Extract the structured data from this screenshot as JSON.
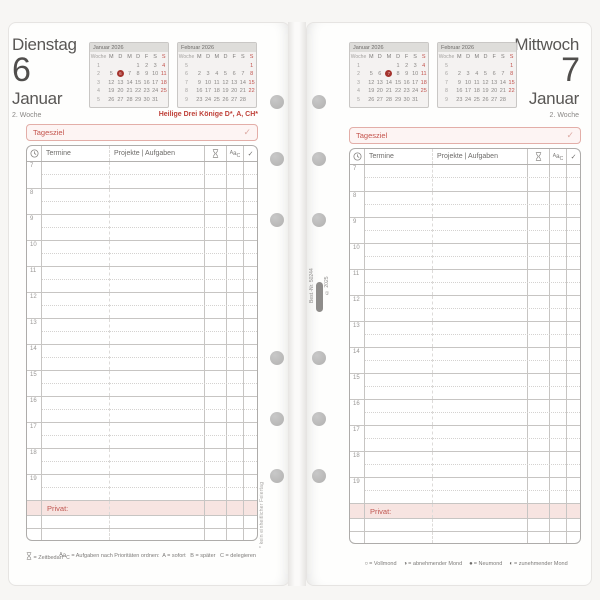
{
  "pages": [
    {
      "weekday": "Dienstag",
      "day_number": "6",
      "month": "Januar",
      "week_label": "2. Woche",
      "holiday": "Heilige Drei Könige D*, A, CH*",
      "tagesziel_label": "Tagesziel",
      "privat_label": "Privat:",
      "footnote": "* kein einheitlicher Feiertag",
      "calendars": [
        {
          "title": "Januar 2026",
          "highlight": "6",
          "day_header": [
            "Woche",
            "M",
            "D",
            "M",
            "D",
            "F",
            "S",
            "S"
          ],
          "weeks": [
            {
              "num": "1",
              "days": [
                "",
                "",
                "",
                "1",
                "2",
                "3",
                "4"
              ]
            },
            {
              "num": "2",
              "days": [
                "5",
                "6",
                "7",
                "8",
                "9",
                "10",
                "11"
              ]
            },
            {
              "num": "3",
              "days": [
                "12",
                "13",
                "14",
                "15",
                "16",
                "17",
                "18"
              ]
            },
            {
              "num": "4",
              "days": [
                "19",
                "20",
                "21",
                "22",
                "23",
                "24",
                "25"
              ]
            },
            {
              "num": "5",
              "days": [
                "26",
                "27",
                "28",
                "29",
                "30",
                "31",
                ""
              ]
            }
          ]
        },
        {
          "title": "Februar 2026",
          "highlight": "",
          "day_header": [
            "Woche",
            "M",
            "D",
            "M",
            "D",
            "F",
            "S",
            "S"
          ],
          "weeks": [
            {
              "num": "5",
              "days": [
                "",
                "",
                "",
                "",
                "",
                "",
                "1"
              ]
            },
            {
              "num": "6",
              "days": [
                "2",
                "3",
                "4",
                "5",
                "6",
                "7",
                "8"
              ]
            },
            {
              "num": "7",
              "days": [
                "9",
                "10",
                "11",
                "12",
                "13",
                "14",
                "15"
              ]
            },
            {
              "num": "8",
              "days": [
                "16",
                "17",
                "18",
                "19",
                "20",
                "21",
                "22"
              ]
            },
            {
              "num": "9",
              "days": [
                "23",
                "24",
                "25",
                "26",
                "27",
                "28",
                ""
              ]
            }
          ]
        }
      ]
    },
    {
      "weekday": "Mittwoch",
      "day_number": "7",
      "month": "Januar",
      "week_label": "2. Woche",
      "holiday": "",
      "tagesziel_label": "Tagesziel",
      "privat_label": "Privat:",
      "footnote": "",
      "calendars": [
        {
          "title": "Januar 2026",
          "highlight": "7",
          "day_header": [
            "Woche",
            "M",
            "D",
            "M",
            "D",
            "F",
            "S",
            "S"
          ],
          "weeks": [
            {
              "num": "1",
              "days": [
                "",
                "",
                "",
                "1",
                "2",
                "3",
                "4"
              ]
            },
            {
              "num": "2",
              "days": [
                "5",
                "6",
                "7",
                "8",
                "9",
                "10",
                "11"
              ]
            },
            {
              "num": "3",
              "days": [
                "12",
                "13",
                "14",
                "15",
                "16",
                "17",
                "18"
              ]
            },
            {
              "num": "4",
              "days": [
                "19",
                "20",
                "21",
                "22",
                "23",
                "24",
                "25"
              ]
            },
            {
              "num": "5",
              "days": [
                "26",
                "27",
                "28",
                "29",
                "30",
                "31",
                ""
              ]
            }
          ]
        },
        {
          "title": "Februar 2026",
          "highlight": "",
          "day_header": [
            "Woche",
            "M",
            "D",
            "M",
            "D",
            "F",
            "S",
            "S"
          ],
          "weeks": [
            {
              "num": "5",
              "days": [
                "",
                "",
                "",
                "",
                "",
                "",
                "1"
              ]
            },
            {
              "num": "6",
              "days": [
                "2",
                "3",
                "4",
                "5",
                "6",
                "7",
                "8"
              ]
            },
            {
              "num": "7",
              "days": [
                "9",
                "10",
                "11",
                "12",
                "13",
                "14",
                "15"
              ]
            },
            {
              "num": "8",
              "days": [
                "16",
                "17",
                "18",
                "19",
                "20",
                "21",
                "22"
              ]
            },
            {
              "num": "9",
              "days": [
                "23",
                "24",
                "25",
                "26",
                "27",
                "28",
                ""
              ]
            }
          ]
        }
      ]
    }
  ],
  "table": {
    "termine_header": "Termine",
    "projekte_header": "Projekte | Aufgaben",
    "abc": {
      "sup": "A",
      "mid": "a",
      "sub": "C"
    },
    "check_symbol": "✓",
    "hours": [
      "7",
      "8",
      "9",
      "10",
      "11",
      "12",
      "13",
      "14",
      "15",
      "16",
      "17",
      "18",
      "19"
    ]
  },
  "legend_left": {
    "zeitbedarf_label": "= Zeitbedarf",
    "abc_label": "= Aufgaben nach Prioritäten ordnen:  A = sofort   B = später   C = delegieren"
  },
  "legend_right": {
    "moon_items": [
      {
        "sym": "○",
        "label": "= Vollmond"
      },
      {
        "sym": "◑",
        "label": "= abnehmender Mond"
      },
      {
        "sym": "●",
        "label": "= Neumond"
      },
      {
        "sym": "◐",
        "label": "= zunehmender Mond"
      }
    ]
  },
  "spine": {
    "order_number": "Best.-Nr. 50244",
    "year": "© 2025"
  },
  "icons": {
    "clock": "clock-icon",
    "hourglass": "hourglass-icon",
    "check": "check-icon"
  },
  "colors": {
    "accent_red": "#c4544d",
    "holiday_red": "#bf4038",
    "pink_fill": "#f7e4e1",
    "highlight_red": "#a4332e"
  }
}
